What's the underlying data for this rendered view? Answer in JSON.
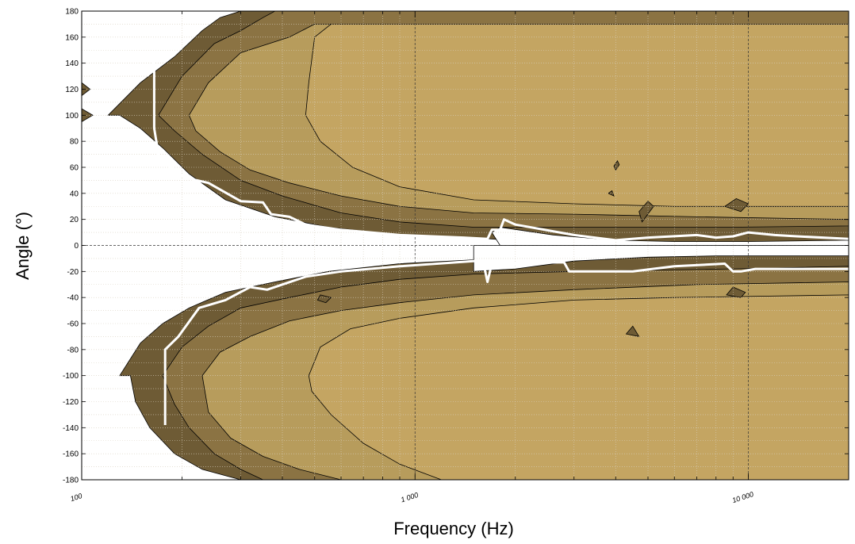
{
  "chart_data": {
    "type": "contour",
    "title": "",
    "xlabel": "Frequency (Hz)",
    "ylabel": "Angle (°)",
    "x_scale": "log",
    "xlim": [
      100,
      20000
    ],
    "ylim": [
      -180,
      180
    ],
    "x_ticks": [
      100,
      1000,
      10000
    ],
    "x_tick_labels": [
      "100",
      "1 000",
      "10 000"
    ],
    "y_ticks": [
      -180,
      -160,
      -140,
      -120,
      -100,
      -80,
      -60,
      -40,
      -20,
      0,
      20,
      40,
      60,
      80,
      100,
      120,
      140,
      160,
      180
    ],
    "y_tick_labels": [
      "-180",
      "-160",
      "-140",
      "-120",
      "-100",
      "-80",
      "-60",
      "-40",
      "-20",
      "0",
      "20",
      "40",
      "60",
      "80",
      "100",
      "120",
      "140",
      "160",
      "180"
    ],
    "grid": true,
    "colors": {
      "level_0": "#ffffff",
      "level_1": "#6e5b35",
      "level_2": "#8b7343",
      "level_3": "#b79c5c",
      "level_4": "#c4a562",
      "curve": "#ffffff"
    },
    "regions": [
      {
        "name": "outer-band",
        "color": "level_1",
        "polygons": [
          [
            [
              120,
              100
            ],
            [
              150,
              125
            ],
            [
              190,
              145
            ],
            [
              230,
              165
            ],
            [
              260,
              175
            ],
            [
              300,
              180
            ],
            [
              20000,
              180
            ],
            [
              20000,
              0
            ],
            [
              3000,
              0
            ],
            [
              1500,
              6
            ],
            [
              900,
              8
            ],
            [
              550,
              14
            ],
            [
              380,
              22
            ],
            [
              270,
              35
            ],
            [
              210,
              55
            ],
            [
              175,
              75
            ],
            [
              150,
              90
            ],
            [
              130,
              100
            ],
            [
              120,
              100
            ]
          ],
          [
            [
              130,
              -100
            ],
            [
              150,
              -75
            ],
            [
              175,
              -60
            ],
            [
              210,
              -48
            ],
            [
              270,
              -36
            ],
            [
              380,
              -28
            ],
            [
              550,
              -20
            ],
            [
              900,
              -14
            ],
            [
              1500,
              -11
            ],
            [
              3000,
              -8
            ],
            [
              6000,
              -8
            ],
            [
              12000,
              -6
            ],
            [
              20000,
              -6
            ],
            [
              20000,
              -180
            ],
            [
              300,
              -180
            ],
            [
              230,
              -172
            ],
            [
              190,
              -160
            ],
            [
              160,
              -140
            ],
            [
              145,
              -120
            ],
            [
              140,
              -100
            ],
            [
              130,
              -100
            ]
          ]
        ]
      },
      {
        "name": "middle-band",
        "color": "level_2",
        "polygons": [
          [
            [
              170,
              100
            ],
            [
              200,
              130
            ],
            [
              250,
              155
            ],
            [
              300,
              165
            ],
            [
              350,
              175
            ],
            [
              380,
              180
            ],
            [
              20000,
              180
            ],
            [
              20000,
              15
            ],
            [
              9000,
              14
            ],
            [
              3000,
              14
            ],
            [
              1500,
              14
            ],
            [
              900,
              18
            ],
            [
              600,
              25
            ],
            [
              400,
              38
            ],
            [
              300,
              50
            ],
            [
              230,
              70
            ],
            [
              190,
              88
            ],
            [
              170,
              100
            ]
          ],
          [
            [
              175,
              -100
            ],
            [
              200,
              -78
            ],
            [
              240,
              -62
            ],
            [
              300,
              -48
            ],
            [
              420,
              -40
            ],
            [
              600,
              -32
            ],
            [
              900,
              -26
            ],
            [
              1500,
              -22
            ],
            [
              3000,
              -20
            ],
            [
              9000,
              -18
            ],
            [
              20000,
              -16
            ],
            [
              20000,
              -180
            ],
            [
              350,
              -180
            ],
            [
              300,
              -172
            ],
            [
              250,
              -160
            ],
            [
              210,
              -140
            ],
            [
              190,
              -122
            ],
            [
              175,
              -100
            ]
          ]
        ]
      },
      {
        "name": "inner-band",
        "color": "level_3",
        "polygons": [
          [
            [
              210,
              100
            ],
            [
              240,
              125
            ],
            [
              300,
              148
            ],
            [
              420,
              160
            ],
            [
              500,
              170
            ],
            [
              20000,
              170
            ],
            [
              20000,
              20
            ],
            [
              7000,
              22
            ],
            [
              3000,
              24
            ],
            [
              1500,
              25
            ],
            [
              900,
              30
            ],
            [
              600,
              38
            ],
            [
              420,
              48
            ],
            [
              320,
              58
            ],
            [
              260,
              72
            ],
            [
              220,
              88
            ],
            [
              210,
              100
            ]
          ],
          [
            [
              230,
              -100
            ],
            [
              260,
              -82
            ],
            [
              320,
              -70
            ],
            [
              420,
              -58
            ],
            [
              600,
              -50
            ],
            [
              900,
              -44
            ],
            [
              1500,
              -38
            ],
            [
              3000,
              -34
            ],
            [
              7000,
              -30
            ],
            [
              20000,
              -28
            ],
            [
              20000,
              -180
            ],
            [
              600,
              -180
            ],
            [
              450,
              -172
            ],
            [
              350,
              -162
            ],
            [
              280,
              -148
            ],
            [
              240,
              -128
            ],
            [
              230,
              -100
            ]
          ]
        ]
      },
      {
        "name": "core-band",
        "color": "level_4",
        "polygons": [
          [
            [
              500,
              160
            ],
            [
              560,
              170
            ],
            [
              20000,
              170
            ],
            [
              20000,
              30
            ],
            [
              6000,
              30
            ],
            [
              3000,
              32
            ],
            [
              1500,
              35
            ],
            [
              900,
              45
            ],
            [
              650,
              60
            ],
            [
              520,
              80
            ],
            [
              470,
              100
            ],
            [
              480,
              125
            ],
            [
              500,
              160
            ]
          ],
          [
            [
              480,
              -100
            ],
            [
              520,
              -78
            ],
            [
              640,
              -64
            ],
            [
              900,
              -56
            ],
            [
              1500,
              -48
            ],
            [
              3000,
              -42
            ],
            [
              6000,
              -40
            ],
            [
              20000,
              -38
            ],
            [
              20000,
              -180
            ],
            [
              1200,
              -180
            ],
            [
              900,
              -168
            ],
            [
              700,
              -152
            ],
            [
              560,
              -130
            ],
            [
              490,
              -112
            ],
            [
              480,
              -100
            ]
          ]
        ]
      },
      {
        "name": "notch-upper",
        "color": "level_0",
        "polygons": [
          [
            [
              1800,
              14
            ],
            [
              2600,
              8
            ],
            [
              4000,
              4
            ],
            [
              6000,
              3
            ],
            [
              10000,
              3
            ],
            [
              20000,
              4
            ],
            [
              20000,
              0
            ],
            [
              1800,
              0
            ],
            [
              1700,
              10
            ],
            [
              1800,
              14
            ]
          ]
        ]
      },
      {
        "name": "notch-lower",
        "color": "level_0",
        "polygons": [
          [
            [
              1500,
              -20
            ],
            [
              2000,
              -18
            ],
            [
              3000,
              -12
            ],
            [
              5000,
              -9
            ],
            [
              8000,
              -8
            ],
            [
              14000,
              -8
            ],
            [
              20000,
              -8
            ],
            [
              20000,
              0
            ],
            [
              1500,
              0
            ],
            [
              1500,
              -20
            ]
          ]
        ]
      },
      {
        "name": "islands",
        "color": "level_1",
        "polygons": [
          [
            [
              100,
              95
            ],
            [
              108,
              100
            ],
            [
              100,
              105
            ]
          ],
          [
            [
              100,
              115
            ],
            [
              106,
              120
            ],
            [
              100,
              125
            ]
          ],
          [
            [
              4000,
              58
            ],
            [
              4100,
              62
            ],
            [
              4050,
              65
            ],
            [
              3950,
              61
            ]
          ],
          [
            [
              3800,
              40
            ],
            [
              3950,
              38
            ],
            [
              3900,
              42
            ]
          ],
          [
            [
              4800,
              18
            ],
            [
              5200,
              30
            ],
            [
              5000,
              34
            ],
            [
              4700,
              26
            ]
          ],
          [
            [
              8500,
              30
            ],
            [
              9500,
              26
            ],
            [
              10000,
              32
            ],
            [
              9200,
              36
            ]
          ],
          [
            [
              8600,
              -38
            ],
            [
              9500,
              -40
            ],
            [
              9800,
              -36
            ],
            [
              9000,
              -32
            ]
          ],
          [
            [
              4300,
              -68
            ],
            [
              4700,
              -70
            ],
            [
              4500,
              -62
            ]
          ],
          [
            [
              520,
              -38
            ],
            [
              560,
              -40
            ],
            [
              540,
              -44
            ],
            [
              510,
              -42
            ]
          ]
        ]
      }
    ],
    "curves": [
      {
        "name": "upper-boundary",
        "x": [
          165,
          165,
          170,
          185,
          205,
          240,
          300,
          350,
          370,
          420,
          470,
          600,
          900,
          1400,
          1650,
          1700,
          1800,
          1850,
          2000,
          3000,
          4000,
          5000,
          7000,
          8000,
          9000,
          10000,
          12000,
          14000,
          20000
        ],
        "y": [
          145,
          90,
          70,
          60,
          52,
          48,
          34,
          33,
          24,
          22,
          16,
          12,
          8,
          6,
          5,
          12,
          12,
          20,
          16,
          8,
          4,
          6,
          8,
          6,
          7,
          10,
          8,
          7,
          5
        ]
      },
      {
        "name": "lower-boundary",
        "x": [
          178,
          178,
          195,
          225,
          270,
          320,
          360,
          400,
          470,
          600,
          900,
          1500,
          1600,
          1650,
          1700,
          2800,
          2900,
          3000,
          4500,
          6000,
          8500,
          9000,
          9500,
          10500,
          20000
        ],
        "y": [
          -138,
          -80,
          -70,
          -48,
          -42,
          -32,
          -34,
          -30,
          -24,
          -20,
          -16,
          -12,
          -12,
          -28,
          -14,
          -13,
          -20,
          -20,
          -20,
          -16,
          -14,
          -20,
          -20,
          -18,
          -18
        ]
      }
    ]
  }
}
